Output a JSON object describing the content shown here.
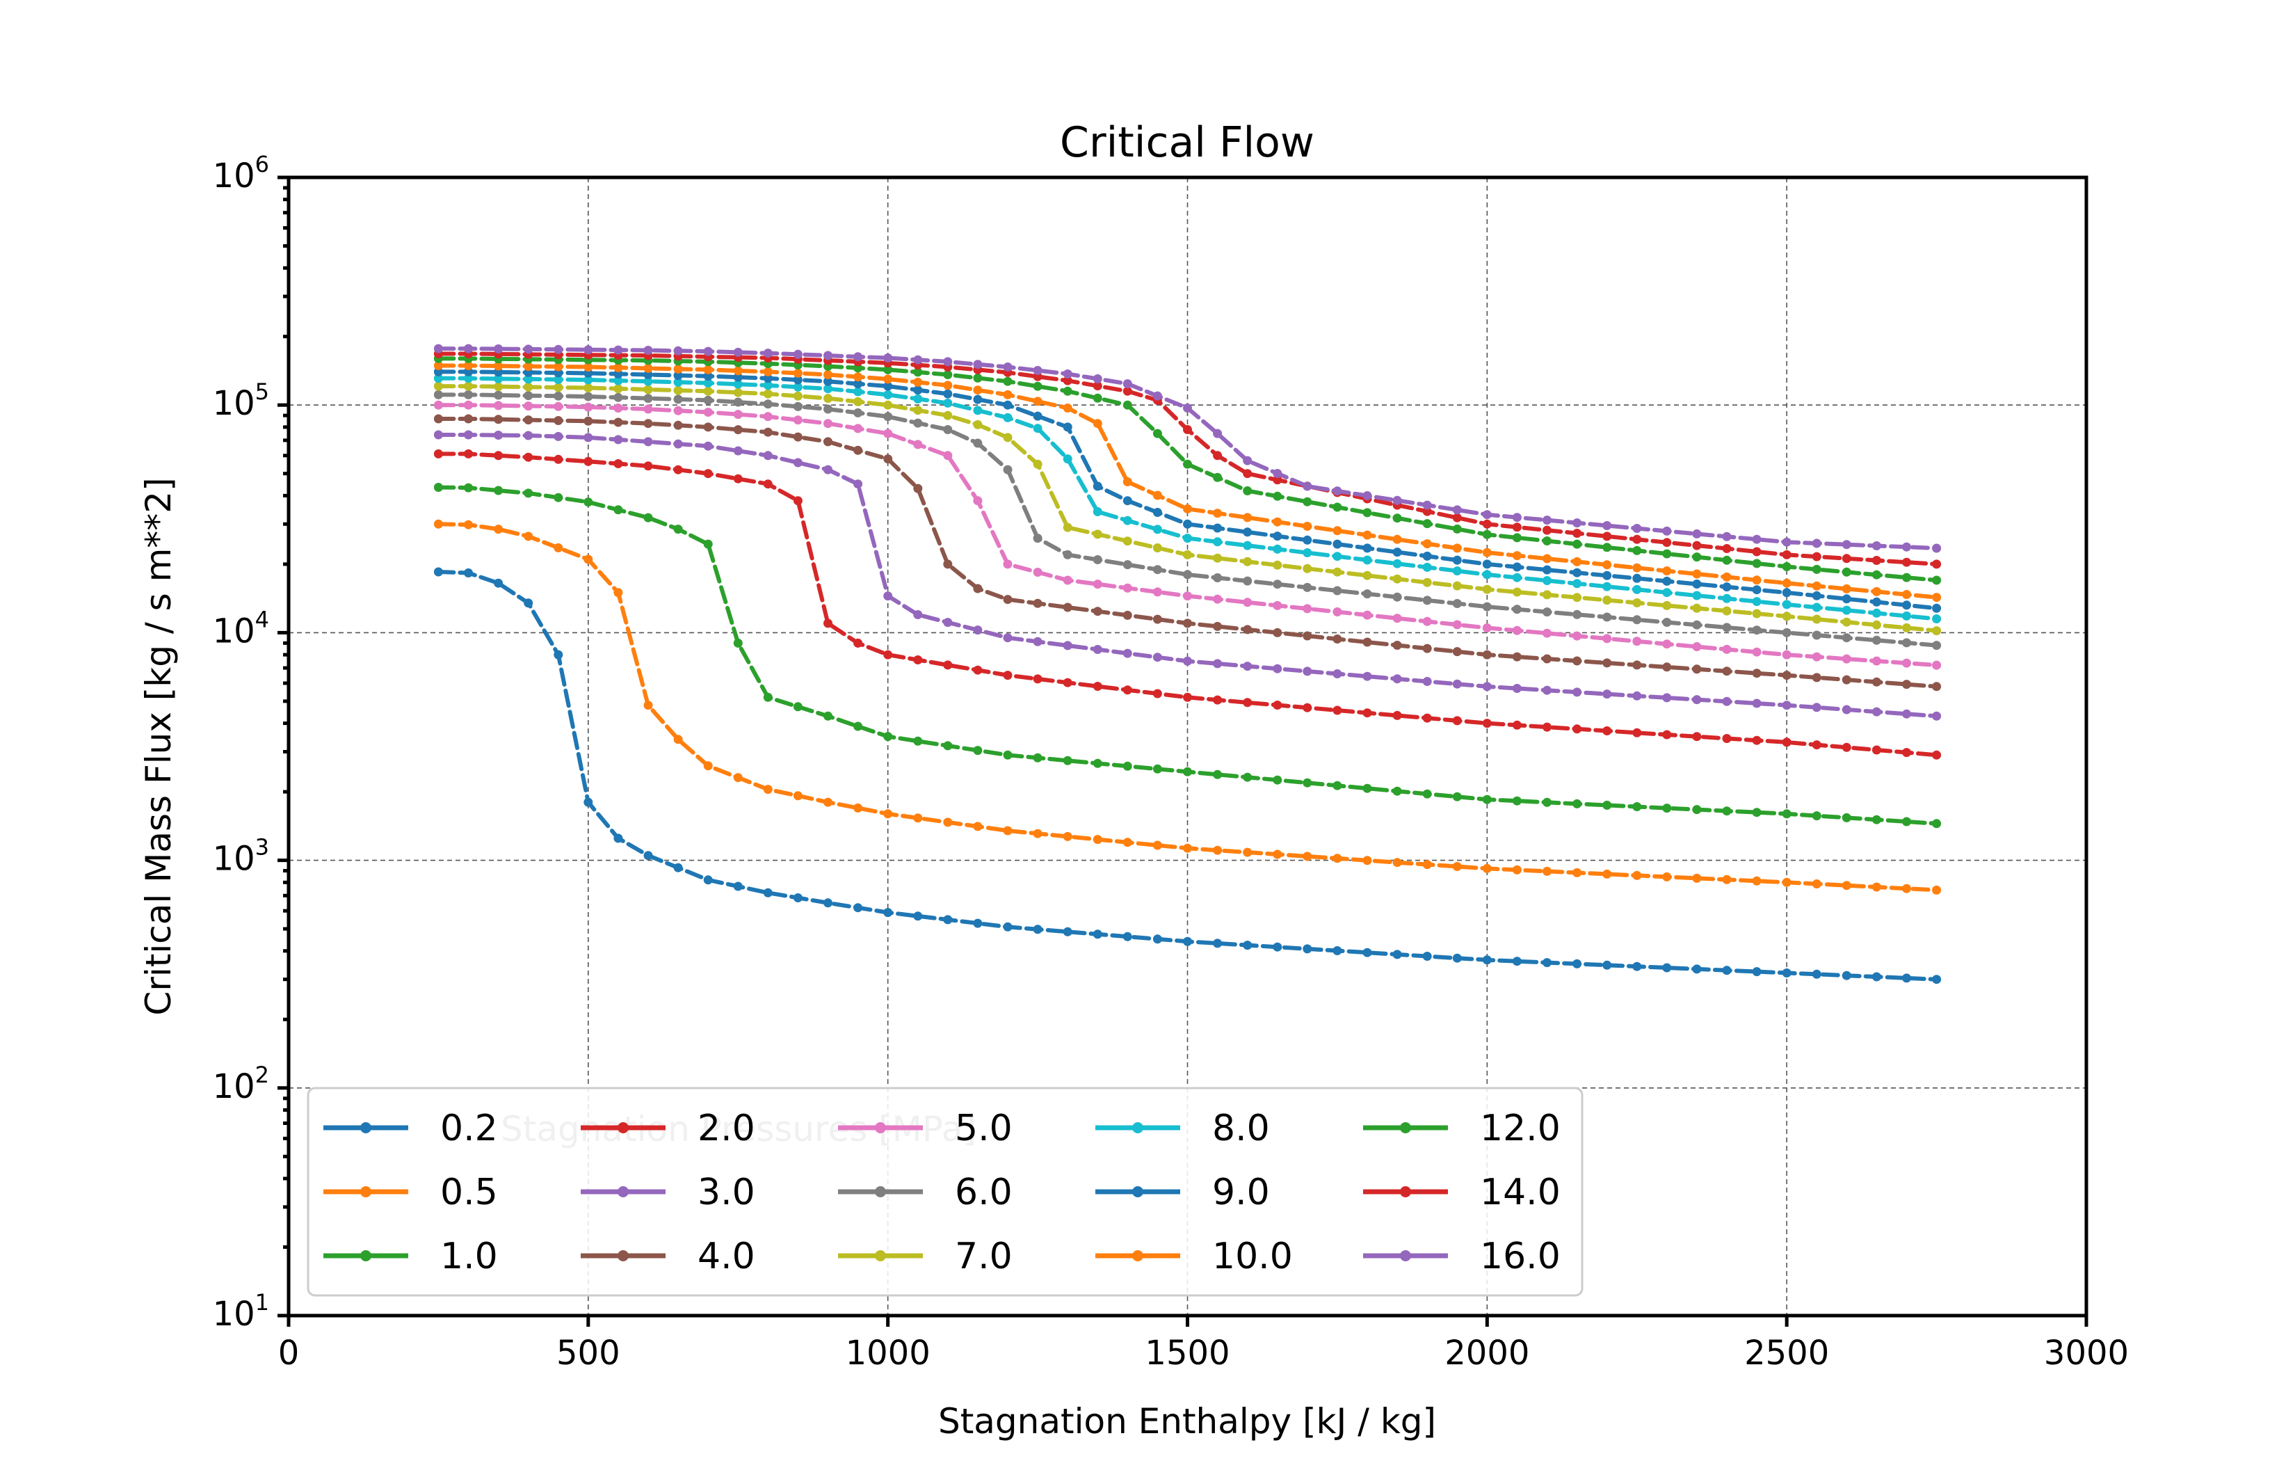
{
  "chart_data": {
    "type": "line",
    "title": "Critical Flow",
    "xlabel": "Stagnation Enthalpy [kJ / kg]",
    "ylabel": "Critical Mass Flux [kg / s m**2]",
    "xlim": [
      0,
      3000
    ],
    "ylim": [
      10,
      1000000
    ],
    "yscale": "log",
    "grid": true,
    "x_ticks": [
      "0",
      "500",
      "1000",
      "1500",
      "2000",
      "2500",
      "3000"
    ],
    "y_tick_exponents": [
      "1",
      "2",
      "3",
      "4",
      "5",
      "6"
    ],
    "y_tick_base": "10",
    "legend": {
      "title": "Stagnation Pressures [MPa]",
      "placement": "lower-left",
      "columns": 5
    },
    "x_range": {
      "start": 250,
      "end": 2750,
      "step": 50
    },
    "series": [
      {
        "name": "0.2",
        "color": "#1f77b4",
        "points": [
          [
            250,
            18500
          ],
          [
            300,
            18300
          ],
          [
            350,
            16500
          ],
          [
            400,
            13500
          ],
          [
            450,
            8000
          ],
          [
            475,
            4500
          ],
          [
            500,
            1800
          ],
          [
            550,
            1250
          ],
          [
            600,
            1050
          ],
          [
            700,
            820
          ],
          [
            800,
            720
          ],
          [
            900,
            650
          ],
          [
            1000,
            590
          ],
          [
            1200,
            510
          ],
          [
            1500,
            440
          ],
          [
            2000,
            365
          ],
          [
            2500,
            320
          ],
          [
            2750,
            300
          ]
        ]
      },
      {
        "name": "0.5",
        "color": "#ff7f0e",
        "points": [
          [
            250,
            30000
          ],
          [
            300,
            29800
          ],
          [
            350,
            28500
          ],
          [
            400,
            26500
          ],
          [
            500,
            21000
          ],
          [
            550,
            15000
          ],
          [
            575,
            9000
          ],
          [
            600,
            4800
          ],
          [
            650,
            3400
          ],
          [
            700,
            2600
          ],
          [
            800,
            2050
          ],
          [
            900,
            1800
          ],
          [
            1000,
            1600
          ],
          [
            1200,
            1350
          ],
          [
            1500,
            1130
          ],
          [
            2000,
            920
          ],
          [
            2500,
            800
          ],
          [
            2750,
            740
          ]
        ]
      },
      {
        "name": "1.0",
        "color": "#2ca02c",
        "points": [
          [
            250,
            43500
          ],
          [
            300,
            43300
          ],
          [
            400,
            41000
          ],
          [
            500,
            37500
          ],
          [
            600,
            32000
          ],
          [
            650,
            28500
          ],
          [
            700,
            24500
          ],
          [
            725,
            16500
          ],
          [
            750,
            9000
          ],
          [
            760,
            5900
          ],
          [
            800,
            5200
          ],
          [
            900,
            4300
          ],
          [
            1000,
            3500
          ],
          [
            1200,
            2900
          ],
          [
            1500,
            2450
          ],
          [
            2000,
            1850
          ],
          [
            2500,
            1600
          ],
          [
            2750,
            1450
          ]
        ]
      },
      {
        "name": "2.0",
        "color": "#d62728",
        "points": [
          [
            250,
            61000
          ],
          [
            300,
            61000
          ],
          [
            400,
            59000
          ],
          [
            500,
            56500
          ],
          [
            600,
            54000
          ],
          [
            700,
            50000
          ],
          [
            800,
            45000
          ],
          [
            850,
            38000
          ],
          [
            875,
            26000
          ],
          [
            900,
            11000
          ],
          [
            950,
            9000
          ],
          [
            1000,
            8000
          ],
          [
            1200,
            6500
          ],
          [
            1500,
            5200
          ],
          [
            2000,
            4000
          ],
          [
            2500,
            3300
          ],
          [
            2750,
            2900
          ]
        ]
      },
      {
        "name": "3.0",
        "color": "#9467bd",
        "points": [
          [
            250,
            74000
          ],
          [
            300,
            74000
          ],
          [
            400,
            73500
          ],
          [
            500,
            72000
          ],
          [
            600,
            69000
          ],
          [
            700,
            66000
          ],
          [
            800,
            60000
          ],
          [
            900,
            52000
          ],
          [
            950,
            45000
          ],
          [
            975,
            35000
          ],
          [
            1000,
            14500
          ],
          [
            1050,
            12000
          ],
          [
            1200,
            9500
          ],
          [
            1500,
            7500
          ],
          [
            2000,
            5800
          ],
          [
            2500,
            4800
          ],
          [
            2750,
            4300
          ]
        ]
      },
      {
        "name": "4.0",
        "color": "#8c564b",
        "points": [
          [
            250,
            87000
          ],
          [
            300,
            87000
          ],
          [
            400,
            86000
          ],
          [
            500,
            85000
          ],
          [
            600,
            83000
          ],
          [
            700,
            80000
          ],
          [
            800,
            76000
          ],
          [
            900,
            69000
          ],
          [
            1000,
            58000
          ],
          [
            1050,
            43000
          ],
          [
            1075,
            30000
          ],
          [
            1100,
            20000
          ],
          [
            1125,
            16500
          ],
          [
            1200,
            14000
          ],
          [
            1500,
            11000
          ],
          [
            2000,
            8000
          ],
          [
            2500,
            6500
          ],
          [
            2750,
            5800
          ]
        ]
      },
      {
        "name": "5.0",
        "color": "#e377c2",
        "points": [
          [
            250,
            100000
          ],
          [
            300,
            100000
          ],
          [
            400,
            99000
          ],
          [
            500,
            98000
          ],
          [
            600,
            96000
          ],
          [
            700,
            93000
          ],
          [
            800,
            89000
          ],
          [
            900,
            83000
          ],
          [
            1000,
            75000
          ],
          [
            1100,
            60000
          ],
          [
            1150,
            38000
          ],
          [
            1175,
            28000
          ],
          [
            1200,
            20000
          ],
          [
            1300,
            17000
          ],
          [
            1500,
            14500
          ],
          [
            2000,
            10500
          ],
          [
            2500,
            8000
          ],
          [
            2750,
            7200
          ]
        ]
      },
      {
        "name": "6.0",
        "color": "#7f7f7f",
        "points": [
          [
            250,
            111000
          ],
          [
            300,
            111000
          ],
          [
            400,
            110000
          ],
          [
            500,
            109000
          ],
          [
            600,
            107000
          ],
          [
            700,
            105000
          ],
          [
            800,
            101000
          ],
          [
            900,
            96000
          ],
          [
            1000,
            89000
          ],
          [
            1100,
            78000
          ],
          [
            1150,
            68000
          ],
          [
            1200,
            52000
          ],
          [
            1225,
            35000
          ],
          [
            1250,
            26000
          ],
          [
            1300,
            22000
          ],
          [
            1500,
            18000
          ],
          [
            2000,
            13000
          ],
          [
            2500,
            10000
          ],
          [
            2750,
            8800
          ]
        ]
      },
      {
        "name": "7.0",
        "color": "#bcbd22",
        "points": [
          [
            250,
            121000
          ],
          [
            300,
            121000
          ],
          [
            400,
            120000
          ],
          [
            500,
            119000
          ],
          [
            600,
            117000
          ],
          [
            700,
            115000
          ],
          [
            800,
            112000
          ],
          [
            900,
            107000
          ],
          [
            1000,
            100000
          ],
          [
            1100,
            90000
          ],
          [
            1150,
            82000
          ],
          [
            1200,
            72000
          ],
          [
            1250,
            55000
          ],
          [
            1275,
            35000
          ],
          [
            1300,
            29000
          ],
          [
            1500,
            22000
          ],
          [
            2000,
            15500
          ],
          [
            2500,
            11800
          ],
          [
            2750,
            10200
          ]
        ]
      },
      {
        "name": "8.0",
        "color": "#17becf",
        "points": [
          [
            250,
            131000
          ],
          [
            300,
            131000
          ],
          [
            400,
            130000
          ],
          [
            500,
            129000
          ],
          [
            600,
            127000
          ],
          [
            700,
            125000
          ],
          [
            800,
            122000
          ],
          [
            900,
            118000
          ],
          [
            1000,
            111000
          ],
          [
            1100,
            102000
          ],
          [
            1200,
            88000
          ],
          [
            1250,
            79000
          ],
          [
            1300,
            58000
          ],
          [
            1325,
            40000
          ],
          [
            1350,
            34000
          ],
          [
            1500,
            26000
          ],
          [
            2000,
            18000
          ],
          [
            2500,
            13300
          ],
          [
            2750,
            11500
          ]
        ]
      },
      {
        "name": "9.0",
        "color": "#1f77b4",
        "points": [
          [
            250,
            140000
          ],
          [
            300,
            140000
          ],
          [
            400,
            139000
          ],
          [
            500,
            138000
          ],
          [
            600,
            136000
          ],
          [
            700,
            134000
          ],
          [
            800,
            131000
          ],
          [
            900,
            127000
          ],
          [
            1000,
            121000
          ],
          [
            1100,
            112000
          ],
          [
            1200,
            100000
          ],
          [
            1300,
            80000
          ],
          [
            1325,
            65000
          ],
          [
            1350,
            44000
          ],
          [
            1400,
            38000
          ],
          [
            1500,
            30000
          ],
          [
            2000,
            20000
          ],
          [
            2500,
            15000
          ],
          [
            2750,
            12800
          ]
        ]
      },
      {
        "name": "10.0",
        "color": "#ff7f0e",
        "points": [
          [
            250,
            149000
          ],
          [
            300,
            149000
          ],
          [
            400,
            148000
          ],
          [
            500,
            147000
          ],
          [
            600,
            145000
          ],
          [
            700,
            143000
          ],
          [
            800,
            140000
          ],
          [
            900,
            136000
          ],
          [
            1000,
            130000
          ],
          [
            1100,
            122000
          ],
          [
            1200,
            111000
          ],
          [
            1300,
            97000
          ],
          [
            1350,
            83000
          ],
          [
            1375,
            65000
          ],
          [
            1400,
            46000
          ],
          [
            1500,
            35000
          ],
          [
            2000,
            22500
          ],
          [
            2500,
            16500
          ],
          [
            2750,
            14300
          ]
        ]
      },
      {
        "name": "12.0",
        "color": "#2ca02c",
        "points": [
          [
            250,
            160000
          ],
          [
            300,
            160000
          ],
          [
            400,
            159000
          ],
          [
            500,
            158000
          ],
          [
            600,
            157000
          ],
          [
            700,
            155000
          ],
          [
            800,
            152000
          ],
          [
            900,
            148000
          ],
          [
            1000,
            143000
          ],
          [
            1100,
            136000
          ],
          [
            1200,
            127000
          ],
          [
            1300,
            115000
          ],
          [
            1400,
            100000
          ],
          [
            1450,
            75000
          ],
          [
            1500,
            55000
          ],
          [
            1600,
            42000
          ],
          [
            2000,
            27000
          ],
          [
            2500,
            19500
          ],
          [
            2750,
            17000
          ]
        ]
      },
      {
        "name": "14.0",
        "color": "#d62728",
        "points": [
          [
            250,
            168000
          ],
          [
            300,
            168000
          ],
          [
            400,
            167000
          ],
          [
            500,
            166000
          ],
          [
            600,
            165000
          ],
          [
            700,
            163000
          ],
          [
            800,
            161000
          ],
          [
            900,
            157000
          ],
          [
            1000,
            153000
          ],
          [
            1100,
            147000
          ],
          [
            1200,
            139000
          ],
          [
            1300,
            128000
          ],
          [
            1400,
            115000
          ],
          [
            1450,
            105000
          ],
          [
            1500,
            78000
          ],
          [
            1550,
            60000
          ],
          [
            1600,
            50000
          ],
          [
            2000,
            30000
          ],
          [
            2500,
            22000
          ],
          [
            2750,
            20000
          ]
        ]
      },
      {
        "name": "16.0",
        "color": "#9467bd",
        "points": [
          [
            250,
            177000
          ],
          [
            300,
            177000
          ],
          [
            400,
            176000
          ],
          [
            500,
            175000
          ],
          [
            600,
            174000
          ],
          [
            700,
            172000
          ],
          [
            800,
            169000
          ],
          [
            900,
            165000
          ],
          [
            1000,
            161000
          ],
          [
            1100,
            155000
          ],
          [
            1200,
            147000
          ],
          [
            1300,
            137000
          ],
          [
            1400,
            124000
          ],
          [
            1500,
            97000
          ],
          [
            1550,
            75000
          ],
          [
            1600,
            57000
          ],
          [
            1700,
            44000
          ],
          [
            2000,
            33000
          ],
          [
            2500,
            25000
          ],
          [
            2750,
            23500
          ]
        ]
      }
    ]
  }
}
